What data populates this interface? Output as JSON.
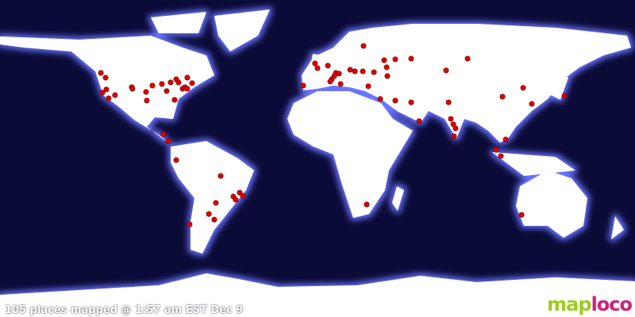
{
  "status_text": "105 places mapped @ 1:57 am EST Dec 9",
  "logo": {
    "part1": "map",
    "part2": "loco"
  },
  "colors": {
    "ocean": "#0b0b38",
    "land": "#ffffff",
    "glow": "#6a74ff",
    "marker": "#e00000"
  },
  "markers": [
    [
      48.6,
      -122.8
    ],
    [
      45.9,
      -120.1
    ],
    [
      39.2,
      -119.7
    ],
    [
      37.4,
      -121.9
    ],
    [
      34.2,
      -118.4
    ],
    [
      36,
      -114.8
    ],
    [
      40.5,
      -105.3
    ],
    [
      39.6,
      -104.9
    ],
    [
      37.8,
      -97.2
    ],
    [
      32.9,
      -96.8
    ],
    [
      41.4,
      -93.6
    ],
    [
      42.3,
      -88.2
    ],
    [
      38.3,
      -85.5
    ],
    [
      43.2,
      -83.3
    ],
    [
      45,
      -80.1
    ],
    [
      43.2,
      -78.8
    ],
    [
      39.6,
      -76.5
    ],
    [
      40.5,
      -75.2
    ],
    [
      45.9,
      -73.8
    ],
    [
      39.6,
      -73.8
    ],
    [
      42.8,
      -71.1
    ],
    [
      33.3,
      -81
    ],
    [
      13.9,
      -87.3
    ],
    [
      9.9,
      -84.6
    ],
    [
      -0.9,
      -80.1
    ],
    [
      -9.9,
      -54.9
    ],
    [
      -25.2,
      -57.6
    ],
    [
      -31.5,
      -61.6
    ],
    [
      -34.7,
      -58.5
    ],
    [
      -37.4,
      -72.5
    ],
    [
      -21.6,
      -47.7
    ],
    [
      -23.4,
      -46.4
    ],
    [
      -19.4,
      -44.1
    ],
    [
      -21.2,
      -42.3
    ],
    [
      54,
      -1.4
    ],
    [
      51.3,
      0
    ],
    [
      52.7,
      5.9
    ],
    [
      41.4,
      -8.1
    ],
    [
      45,
      8.1
    ],
    [
      48.6,
      10.4
    ],
    [
      46.8,
      9.5
    ],
    [
      48.2,
      12.2
    ],
    [
      43.7,
      7.2
    ],
    [
      42.3,
      13.1
    ],
    [
      50.4,
      18.5
    ],
    [
      49.5,
      21.2
    ],
    [
      49.5,
      25.7
    ],
    [
      49,
      32
    ],
    [
      63.9,
      26.1
    ],
    [
      55.8,
      37.8
    ],
    [
      56.3,
      44.1
    ],
    [
      56.7,
      53.1
    ],
    [
      51.8,
      39.2
    ],
    [
      46.8,
      39.6
    ],
    [
      41,
      28.8
    ],
    [
      33.8,
      35.6
    ],
    [
      32.9,
      44.1
    ],
    [
      31.9,
      53.1
    ],
    [
      50,
      72.9
    ],
    [
      56.7,
      85.1
    ],
    [
      31.9,
      74.3
    ],
    [
      21.2,
      57.6
    ],
    [
      22.5,
      75.6
    ],
    [
      19.4,
      77
    ],
    [
      17.1,
      78.3
    ],
    [
      12.6,
      77.4
    ],
    [
      35.1,
      104.9
    ],
    [
      40.1,
      116.6
    ],
    [
      31,
      121.5
    ],
    [
      35.6,
      140
    ],
    [
      10.8,
      106.7
    ],
    [
      4.9,
      101.3
    ],
    [
      1.4,
      104
    ],
    [
      -26.1,
      27.9
    ],
    [
      -32,
      115.7
    ]
  ]
}
